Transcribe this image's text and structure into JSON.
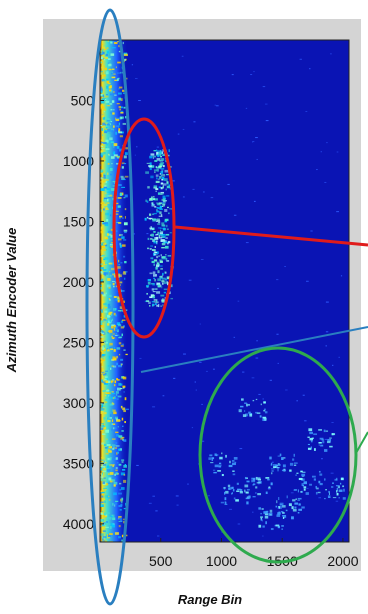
{
  "chart_data": {
    "type": "heatmap",
    "title": "",
    "xlabel": "Range Bin",
    "ylabel": "Azimuth Encoder Value",
    "xlim": [
      0,
      2050
    ],
    "ylim": [
      4150,
      0
    ],
    "xticks": [
      500,
      1000,
      1500,
      2000
    ],
    "yticks": [
      500,
      1000,
      1500,
      2000,
      2500,
      3000,
      3500,
      4000
    ],
    "colormap": "jet",
    "background_color": "#0a14b4",
    "plot_frame_color": "#d4d4d4",
    "features": [
      {
        "label": "near-range clutter band",
        "x_range": [
          0,
          230
        ],
        "y_range": [
          0,
          4150
        ],
        "intensity": "high",
        "outline_color": "#2a7fc0"
      },
      {
        "label": "target cluster",
        "x_range": [
          350,
          600
        ],
        "y_range": [
          900,
          2200
        ],
        "intensity": "medium-high",
        "outline_color": "#e01b1b"
      },
      {
        "label": "scattered returns",
        "x_range": [
          1000,
          2000
        ],
        "y_range": [
          2700,
          4100
        ],
        "intensity": "medium",
        "outline_color": "#2eaa4e"
      }
    ]
  }
}
